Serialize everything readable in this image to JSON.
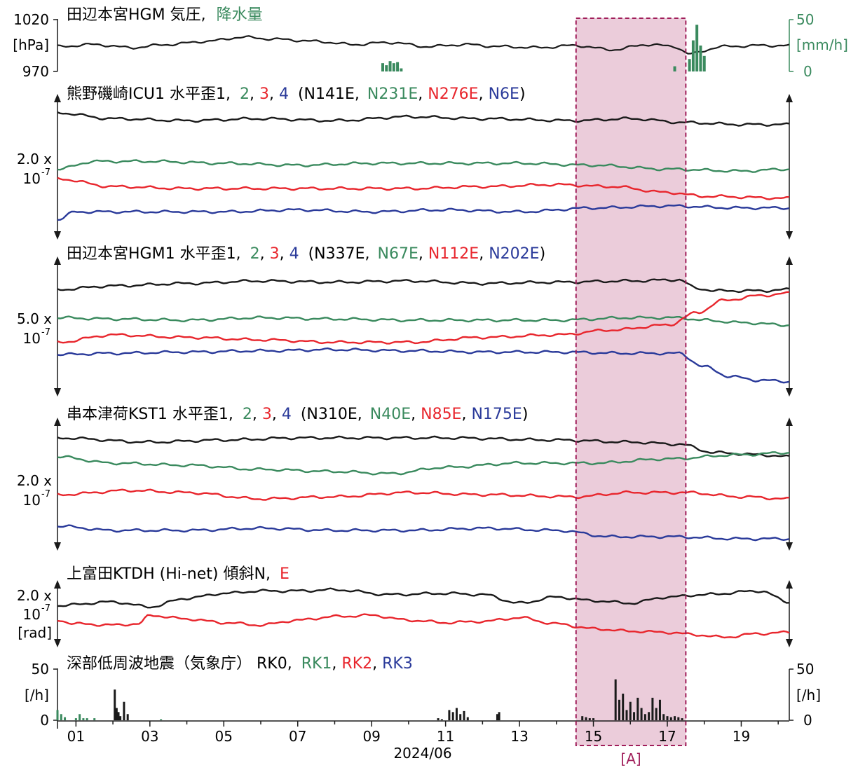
{
  "colors": {
    "black": "#1a1a1a",
    "green": "#3a8a5e",
    "red": "#e8262d",
    "blue": "#2a3a9a",
    "highlight_fill": "#e8c3d4",
    "highlight_edge": "#a01e5a"
  },
  "highlight": {
    "x_range": [
      14.53,
      17.5
    ],
    "label": "[A]"
  },
  "panels": {
    "pressure": {
      "title_prefix": "田辺本宮HGM 気圧,",
      "title_green": "降水量",
      "y_labels": [
        "1020",
        "[hPa]",
        "970"
      ],
      "right_labels": [
        "50",
        "[mm/h]",
        "0"
      ]
    },
    "icu": {
      "title_prefix": "熊野磯崎ICU1 水平歪1,",
      "n2": "2",
      "n3": "3",
      "n4": "4",
      "paren_open": "(N141E,",
      "az2": "N231E",
      "az3": "N276E",
      "az4": "N6E",
      "paren_close": ")",
      "scale_1": "2.0 x",
      "scale_2": "10",
      "scale_exp": "-7"
    },
    "hgm": {
      "title_prefix": "田辺本宮HGM1 水平歪1,",
      "n2": "2",
      "n3": "3",
      "n4": "4",
      "paren_open": "(N337E,",
      "az2": "N67E",
      "az3": "N112E",
      "az4": "N202E",
      "paren_close": ")",
      "scale_1": "5.0 x",
      "scale_2": "10",
      "scale_exp": "-7"
    },
    "kst": {
      "title_prefix": "串本津荷KST1 水平歪1,",
      "n2": "2",
      "n3": "3",
      "n4": "4",
      "paren_open": "(N310E,",
      "az2": "N40E",
      "az3": "N85E",
      "az4": "N175E",
      "paren_close": ")",
      "scale_1": "2.0 x",
      "scale_2": "10",
      "scale_exp": "-7"
    },
    "tilt": {
      "title_prefix": "上富田KTDH (Hi-net) 傾斜N,",
      "title_e": "E",
      "scale_1": "2.0 x",
      "scale_2": "10",
      "scale_exp": "-7",
      "scale_3": "[rad]"
    },
    "lfe": {
      "title_prefix": "深部低周波地震（気象庁） RK0,",
      "rk1": "RK1",
      "rk2": "RK2",
      "rk3": "RK3",
      "y_labels": [
        "50",
        "[/h]",
        "0"
      ],
      "right_labels": [
        "50",
        "[/h]",
        "0"
      ]
    }
  },
  "x_axis": {
    "tick_labels": [
      "01",
      "03",
      "05",
      "07",
      "09",
      "11",
      "13",
      "15",
      "17",
      "19"
    ],
    "date_label": "2024/06"
  },
  "chart_data": {
    "type": "line",
    "x_unit": "day of 2024/06",
    "xlim": [
      0.5,
      20.3
    ],
    "pressure": {
      "ylim": [
        970,
        1020
      ],
      "pressure_hPa": {
        "x": [
          0.5,
          1.5,
          2.5,
          3.5,
          4.5,
          5.5,
          6.5,
          7.5,
          8.5,
          9.5,
          10.5,
          11.5,
          12.5,
          13.5,
          14.5,
          15.5,
          16.5,
          17.2,
          17.6,
          18.5,
          19.5,
          20.3
        ],
        "values": [
          994,
          996,
          993,
          996,
          999,
          1003,
          1001,
          999,
          996,
          998,
          994,
          996,
          994,
          993,
          995,
          991,
          996,
          994,
          987,
          994,
          995,
          995
        ]
      },
      "rain_mm_per_h": {
        "x": [
          9.3,
          9.4,
          9.5,
          9.6,
          9.7,
          9.8,
          17.2,
          17.6,
          17.7,
          17.8,
          17.9,
          18.0
        ],
        "values": [
          8,
          6,
          10,
          8,
          9,
          3,
          5,
          12,
          30,
          45,
          25,
          15
        ]
      }
    },
    "strain_icu1": {
      "scale": "2.0 x 10^-7",
      "series": [
        {
          "name": "1",
          "x": [
            0.5,
            2,
            4,
            6,
            8,
            10,
            12,
            14.5,
            16,
            17.5,
            19,
            20.3
          ],
          "values": [
            3.1,
            2.8,
            2.7,
            2.8,
            2.7,
            2.9,
            2.8,
            2.7,
            2.8,
            2.6,
            2.5,
            2.5
          ]
        },
        {
          "name": "2",
          "x": [
            0.5,
            1.5,
            3,
            5,
            7,
            9,
            11,
            13,
            15,
            17,
            19,
            20.3
          ],
          "values": [
            0.2,
            0.6,
            0.6,
            0.5,
            0.4,
            0.5,
            0.5,
            0.5,
            0.4,
            0.2,
            0.1,
            0.2
          ]
        },
        {
          "name": "3",
          "x": [
            0.5,
            2,
            4,
            6,
            8,
            10,
            12,
            14,
            15.5,
            17,
            18,
            20.3
          ],
          "values": [
            -0.3,
            -0.7,
            -0.8,
            -0.8,
            -0.8,
            -0.8,
            -0.7,
            -0.6,
            -0.7,
            -1.0,
            -1.2,
            -1.3
          ]
        },
        {
          "name": "4",
          "x": [
            0.5,
            1,
            3,
            5,
            7,
            9,
            11,
            13,
            15,
            17,
            19,
            20.3
          ],
          "values": [
            -2.4,
            -2.0,
            -2.0,
            -2.0,
            -1.9,
            -2.0,
            -1.9,
            -2.0,
            -1.8,
            -1.7,
            -1.8,
            -1.8
          ]
        }
      ]
    },
    "strain_hgm1": {
      "scale": "5.0 x 10^-7",
      "series": [
        {
          "name": "1",
          "x": [
            0.5,
            2,
            4,
            6,
            8,
            10,
            12,
            14,
            16,
            17.3,
            17.8,
            18.3,
            19.5,
            20.3
          ],
          "values": [
            1.75,
            1.9,
            2.0,
            2.1,
            2.05,
            2.1,
            2.0,
            2.05,
            2.1,
            2.15,
            1.8,
            1.7,
            1.7,
            1.75
          ]
        },
        {
          "name": "2",
          "x": [
            0.5,
            2,
            4,
            6,
            8,
            10,
            12,
            14,
            16,
            17.3,
            18,
            19,
            20.3
          ],
          "values": [
            0.6,
            0.55,
            0.5,
            0.6,
            0.55,
            0.5,
            0.5,
            0.5,
            0.6,
            0.6,
            0.5,
            0.4,
            0.3
          ]
        },
        {
          "name": "3",
          "x": [
            0.5,
            2,
            4,
            6,
            8,
            10,
            12,
            14,
            15.5,
            17,
            17.8,
            18.5,
            19.5,
            20.3
          ],
          "values": [
            -0.4,
            -0.1,
            -0.2,
            -0.3,
            -0.4,
            -0.4,
            -0.2,
            -0.1,
            0.1,
            0.3,
            0.8,
            1.3,
            1.5,
            1.6
          ]
        },
        {
          "name": "4",
          "x": [
            0.5,
            2,
            4,
            6,
            8,
            10,
            12,
            14,
            16,
            17.3,
            18,
            18.7,
            19.5,
            20.3
          ],
          "values": [
            -0.9,
            -0.85,
            -0.8,
            -0.75,
            -0.7,
            -0.75,
            -0.8,
            -0.8,
            -0.85,
            -0.85,
            -1.4,
            -1.8,
            -1.95,
            -2.0
          ]
        }
      ]
    },
    "strain_kst1": {
      "scale": "2.0 x 10^-7",
      "series": [
        {
          "name": "1",
          "x": [
            0.5,
            3,
            5,
            7,
            9,
            11,
            14,
            16,
            17.3,
            18.3,
            19.5,
            20.3
          ],
          "values": [
            2.0,
            1.8,
            1.9,
            2.0,
            2.0,
            2.0,
            1.9,
            1.8,
            1.7,
            1.3,
            1.2,
            1.1
          ]
        },
        {
          "name": "2",
          "x": [
            0.5,
            2,
            4,
            6,
            8,
            9.5,
            11,
            13,
            15,
            17,
            19,
            20.3
          ],
          "values": [
            1.1,
            0.8,
            0.7,
            0.5,
            0.4,
            0.3,
            0.6,
            0.8,
            0.8,
            1.0,
            1.2,
            1.3
          ]
        },
        {
          "name": "3",
          "x": [
            0.5,
            2.5,
            4,
            6,
            8,
            10,
            12,
            14.5,
            16,
            17.5,
            19,
            20.3
          ],
          "values": [
            -0.7,
            -0.5,
            -0.6,
            -0.9,
            -0.8,
            -0.6,
            -0.7,
            -0.8,
            -0.6,
            -0.6,
            -0.8,
            -0.9
          ]
        },
        {
          "name": "4",
          "x": [
            0.5,
            2,
            4,
            6,
            8,
            10,
            12,
            14,
            15.5,
            17,
            19,
            20.3
          ],
          "values": [
            -2.2,
            -2.4,
            -2.4,
            -2.3,
            -2.4,
            -2.4,
            -2.3,
            -2.4,
            -2.7,
            -2.7,
            -2.8,
            -2.8
          ]
        }
      ]
    },
    "tilt_ktdh": {
      "scale": "2.0 x 10^-7 rad",
      "series": [
        {
          "name": "N",
          "x": [
            0.5,
            2,
            3,
            4,
            5,
            6,
            7,
            8,
            9.5,
            11,
            12,
            13,
            14,
            15,
            16,
            17,
            18,
            19.5,
            20.3
          ],
          "values": [
            0.6,
            0.9,
            0.5,
            1.2,
            1.6,
            1.8,
            1.8,
            1.9,
            1.5,
            1.6,
            1.5,
            0.8,
            1.3,
            1.0,
            0.8,
            1.3,
            1.5,
            1.8,
            0.9
          ]
        },
        {
          "name": "E",
          "x": [
            0.5,
            1,
            2,
            2.7,
            3,
            4,
            5,
            6,
            7,
            8,
            9,
            10,
            11,
            12,
            13,
            14,
            15,
            16,
            17,
            17.8,
            18.5,
            19.5,
            20.3
          ],
          "values": [
            -0.6,
            -0.9,
            -1.0,
            -0.9,
            -0.2,
            -0.5,
            -0.8,
            -1.0,
            -0.6,
            -0.3,
            -0.2,
            -0.6,
            -0.8,
            -0.7,
            -0.4,
            -0.9,
            -1.3,
            -1.5,
            -1.6,
            -1.8,
            -2.0,
            -1.7,
            -1.6
          ]
        }
      ]
    },
    "lfe_jma": {
      "ylim": [
        0,
        50
      ],
      "unit": "events per hour",
      "series": [
        {
          "name": "RK0",
          "x": [
            2.05,
            2.1,
            2.15,
            2.2,
            2.3,
            2.4,
            10.8,
            10.9,
            11.1,
            11.2,
            11.3,
            11.4,
            11.5,
            11.6,
            12.4,
            12.45,
            14.7,
            14.8,
            14.9,
            15.0,
            15.6,
            15.7,
            15.8,
            15.9,
            16.0,
            16.1,
            16.2,
            16.3,
            16.4,
            16.5,
            16.6,
            16.7,
            16.8,
            16.9,
            17.0,
            17.1,
            17.2,
            17.3,
            17.4
          ],
          "values": [
            30,
            12,
            8,
            4,
            18,
            6,
            2,
            1,
            10,
            8,
            12,
            6,
            9,
            3,
            6,
            8,
            4,
            3,
            2,
            2,
            40,
            20,
            26,
            10,
            18,
            8,
            22,
            12,
            6,
            8,
            22,
            12,
            20,
            6,
            4,
            3,
            4,
            3,
            2
          ]
        },
        {
          "name": "RK1",
          "x": [
            0.5,
            0.6,
            0.7,
            1.0,
            1.1,
            1.2,
            1.3,
            1.5,
            3.3
          ],
          "values": [
            10,
            6,
            3,
            2,
            6,
            2,
            2,
            2,
            1
          ]
        },
        {
          "name": "RK2",
          "x": [],
          "values": []
        },
        {
          "name": "RK3",
          "x": [],
          "values": []
        }
      ]
    }
  }
}
